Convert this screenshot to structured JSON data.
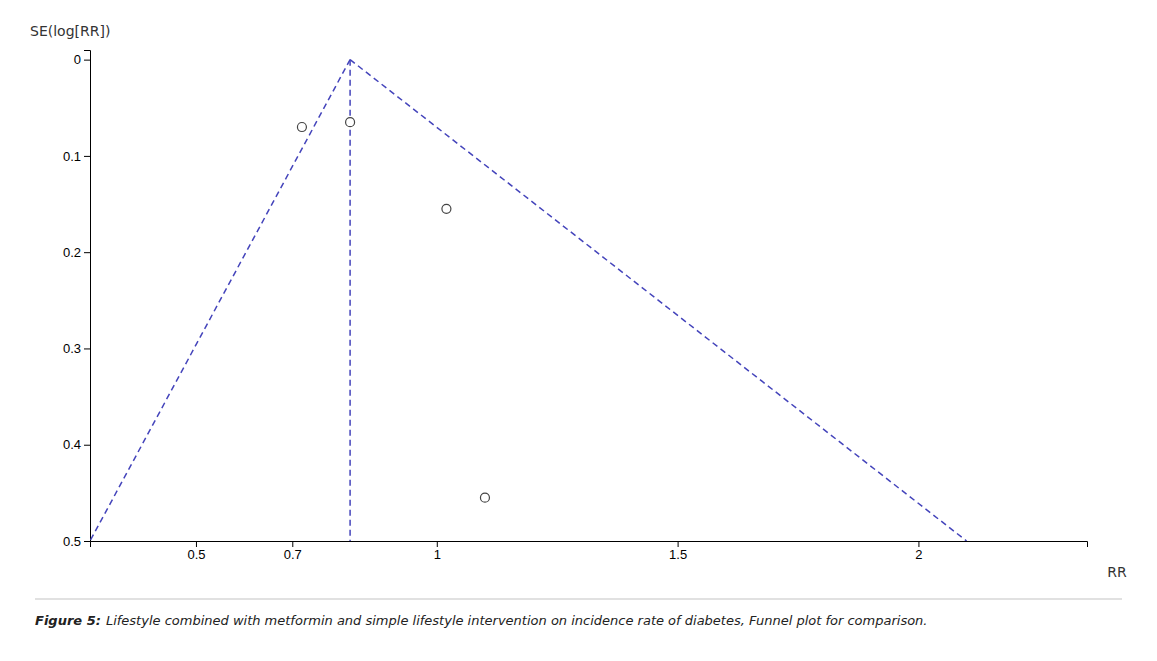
{
  "chart_data": {
    "type": "scatter",
    "title": "Figure 5:",
    "subtitle": "Lifestyle combined with metformin and simple lifestyle intervention on incidence rate of diabetes, Funnel plot for comparison.",
    "x_label": "RR",
    "y_label": "SE(log[RR])",
    "xlim": [
      0.28,
      2.35
    ],
    "ylim": [
      0.5,
      -0.01
    ],
    "xticks": [
      0.5,
      0.7,
      1,
      1.5,
      2
    ],
    "yticks": [
      0,
      0.1,
      0.2,
      0.3,
      0.4,
      0.5
    ],
    "grid": false,
    "series": [
      {
        "type": "scatter",
        "marker": "circle-open",
        "color": "#444444",
        "x": [
          0.72,
          0.82,
          1.02,
          1.1
        ],
        "values": [
          0.07,
          0.065,
          0.155,
          0.455
        ]
      },
      {
        "type": "line",
        "line_style": "dashed",
        "color": "#4444bb",
        "x": [
          0.82,
          0.28
        ],
        "values": [
          0,
          0.5
        ]
      },
      {
        "type": "line",
        "line_style": "dashed",
        "color": "#4444bb",
        "x": [
          0.82,
          2.1
        ],
        "values": [
          0,
          0.5
        ]
      },
      {
        "type": "line",
        "line_style": "dashed",
        "color": "#4444bb",
        "x": [
          0.82,
          0.82
        ],
        "values": [
          0,
          0.5
        ]
      }
    ]
  }
}
